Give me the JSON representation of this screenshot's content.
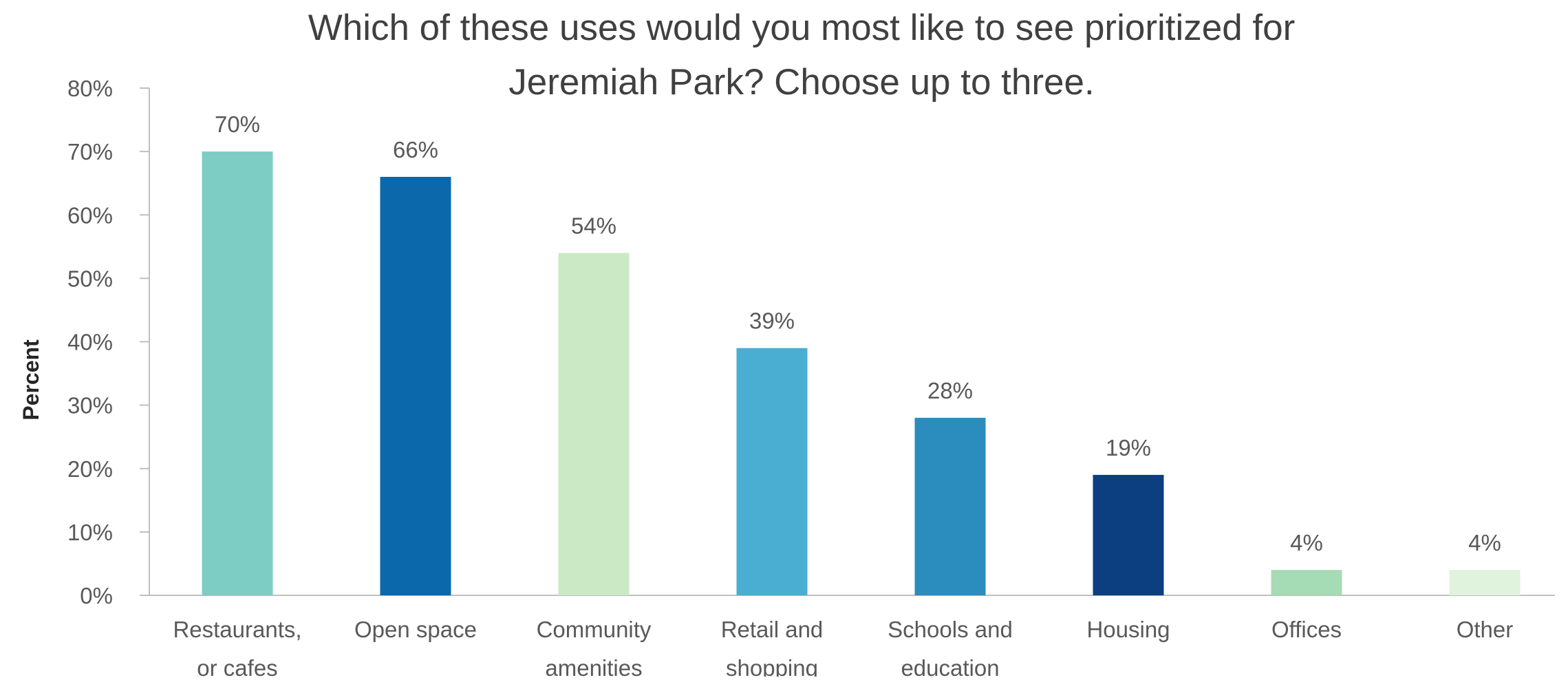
{
  "chart_data": {
    "type": "bar",
    "title_lines": [
      "Which of these uses would you most like to see prioritized for",
      "Jeremiah Park? Choose up to three."
    ],
    "ylabel": "Percent",
    "xlabel": "",
    "ylim": [
      0,
      80
    ],
    "yticks": [
      0,
      10,
      20,
      30,
      40,
      50,
      60,
      70,
      80
    ],
    "ytick_labels": [
      "0%",
      "10%",
      "20%",
      "30%",
      "40%",
      "50%",
      "60%",
      "70%",
      "80%"
    ],
    "grid": false,
    "legend": "none",
    "categories": [
      [
        "Restaurants,",
        "or cafes"
      ],
      [
        "Open space"
      ],
      [
        "Community",
        "amenities"
      ],
      [
        "Retail and",
        "shopping"
      ],
      [
        "Schools and",
        "education"
      ],
      [
        "Housing"
      ],
      [
        "Offices"
      ],
      [
        "Other"
      ]
    ],
    "values": [
      70,
      66,
      54,
      39,
      28,
      19,
      4,
      4
    ],
    "data_labels": [
      "70%",
      "66%",
      "54%",
      "39%",
      "28%",
      "19%",
      "4%",
      "4%"
    ],
    "colors": [
      "#7ecdc4",
      "#0a68ab",
      "#cbe9c5",
      "#4aaed2",
      "#2b8cbe",
      "#0b3f80",
      "#a5dbb5",
      "#e0f3dd"
    ]
  }
}
